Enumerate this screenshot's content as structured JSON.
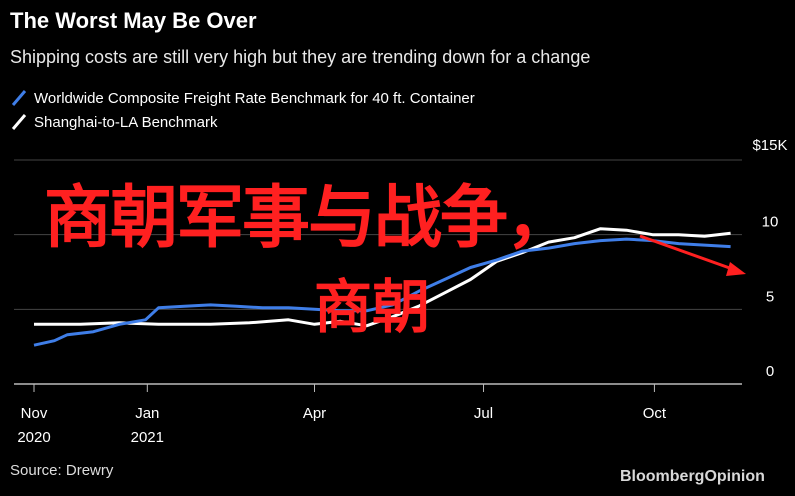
{
  "title": "The Worst May Be Over",
  "subtitle": "Shipping costs are still very high but they are trending down for a change",
  "source": "Source: Drewry",
  "brand": "BloombergOpinion",
  "overlay_text": {
    "main": "商朝军事与战争，",
    "sub": "商朝"
  },
  "colors": {
    "background": "#000000",
    "series_blue": "#3f7ee8",
    "series_white": "#ffffff",
    "overlay_red": "#ff2020",
    "grid": "#444444"
  },
  "chart_data": {
    "type": "line",
    "ylabel": "$15K",
    "ylim": [
      0,
      15
    ],
    "y_ticks": [
      {
        "value": 0,
        "label": "0"
      },
      {
        "value": 5,
        "label": "5"
      },
      {
        "value": 10,
        "label": "10"
      },
      {
        "value": 15,
        "label": "$15K"
      }
    ],
    "x_range": [
      "2020-11-01",
      "2021-11-15"
    ],
    "x_ticks": [
      {
        "date": "2020-11-01",
        "label": "Nov",
        "label2": "2020"
      },
      {
        "date": "2021-01-01",
        "label": "Jan",
        "label2": "2021"
      },
      {
        "date": "2021-04-01",
        "label": "Apr",
        "label2": ""
      },
      {
        "date": "2021-07-01",
        "label": "Jul",
        "label2": ""
      },
      {
        "date": "2021-10-01",
        "label": "Oct",
        "label2": ""
      }
    ],
    "grid": true,
    "legend_position": "top-left",
    "series": [
      {
        "name": "Worldwide Composite Freight Rate Benchmark for 40 ft. Container",
        "color": "#3f7ee8",
        "points": [
          [
            "2020-11-01",
            2.6
          ],
          [
            "2020-11-12",
            2.9
          ],
          [
            "2020-11-19",
            3.3
          ],
          [
            "2020-12-03",
            3.5
          ],
          [
            "2020-12-17",
            4.0
          ],
          [
            "2020-12-31",
            4.3
          ],
          [
            "2021-01-07",
            5.1
          ],
          [
            "2021-01-21",
            5.2
          ],
          [
            "2021-02-04",
            5.3
          ],
          [
            "2021-02-18",
            5.2
          ],
          [
            "2021-03-04",
            5.1
          ],
          [
            "2021-03-18",
            5.1
          ],
          [
            "2021-04-01",
            5.0
          ],
          [
            "2021-04-15",
            4.9
          ],
          [
            "2021-04-29",
            4.9
          ],
          [
            "2021-05-13",
            5.3
          ],
          [
            "2021-05-27",
            6.2
          ],
          [
            "2021-06-10",
            7.0
          ],
          [
            "2021-06-24",
            7.8
          ],
          [
            "2021-07-08",
            8.3
          ],
          [
            "2021-07-22",
            8.9
          ],
          [
            "2021-08-05",
            9.1
          ],
          [
            "2021-08-19",
            9.4
          ],
          [
            "2021-09-02",
            9.6
          ],
          [
            "2021-09-16",
            9.7
          ],
          [
            "2021-09-30",
            9.6
          ],
          [
            "2021-10-14",
            9.4
          ],
          [
            "2021-10-28",
            9.3
          ],
          [
            "2021-11-11",
            9.2
          ]
        ]
      },
      {
        "name": "Shanghai-to-LA Benchmark",
        "color": "#ffffff",
        "points": [
          [
            "2020-11-01",
            4.0
          ],
          [
            "2020-11-26",
            4.0
          ],
          [
            "2020-12-17",
            4.1
          ],
          [
            "2021-01-07",
            4.0
          ],
          [
            "2021-02-04",
            4.0
          ],
          [
            "2021-02-25",
            4.1
          ],
          [
            "2021-03-18",
            4.3
          ],
          [
            "2021-04-01",
            4.0
          ],
          [
            "2021-04-15",
            4.2
          ],
          [
            "2021-04-29",
            3.9
          ],
          [
            "2021-05-13",
            4.5
          ],
          [
            "2021-05-27",
            5.2
          ],
          [
            "2021-06-10",
            6.1
          ],
          [
            "2021-06-24",
            7.0
          ],
          [
            "2021-07-08",
            8.2
          ],
          [
            "2021-07-22",
            8.8
          ],
          [
            "2021-08-05",
            9.5
          ],
          [
            "2021-08-19",
            9.8
          ],
          [
            "2021-09-02",
            10.4
          ],
          [
            "2021-09-16",
            10.3
          ],
          [
            "2021-09-30",
            10.0
          ],
          [
            "2021-10-14",
            10.0
          ],
          [
            "2021-10-28",
            9.9
          ],
          [
            "2021-11-11",
            10.1
          ]
        ]
      }
    ]
  }
}
